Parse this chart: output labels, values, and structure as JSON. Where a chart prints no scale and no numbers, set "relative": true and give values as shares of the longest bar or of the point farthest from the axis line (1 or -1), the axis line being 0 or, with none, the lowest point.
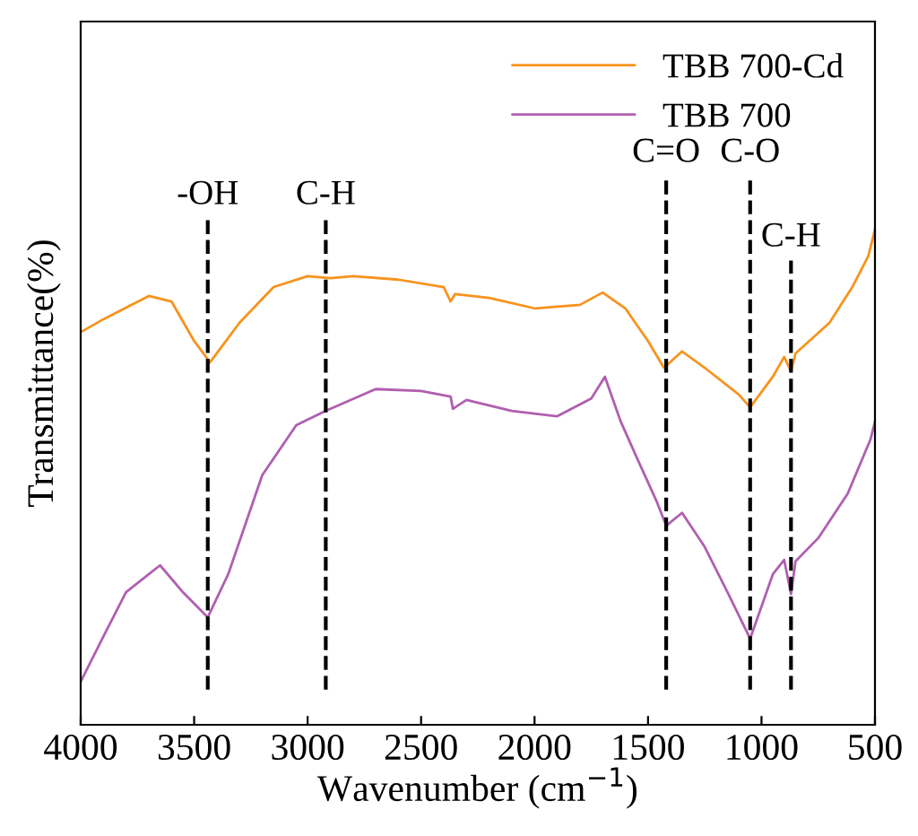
{
  "chart_data": {
    "type": "line",
    "xlabel": "Wavenumber (cm$^{−1}$)",
    "ylabel": "Transmittance(%)",
    "relative": true,
    "xlim": [
      4000,
      500
    ],
    "xticks": [
      4000,
      3500,
      3000,
      2500,
      2000,
      1500,
      1000,
      500
    ],
    "legend": "top right",
    "grid": false,
    "line_style": "solid",
    "marker": "none",
    "tick_labels": "x",
    "series": [
      {
        "name": "TBB 700-Cd",
        "color": "#f7931e",
        "x": [
          4000,
          3900,
          3700,
          3600,
          3500,
          3430,
          3300,
          3150,
          3000,
          2900,
          2800,
          2600,
          2400,
          2370,
          2350,
          2200,
          2000,
          1800,
          1700,
          1600,
          1500,
          1430,
          1350,
          1250,
          1100,
          1050,
          950,
          900,
          870,
          850,
          700,
          600,
          530,
          500
        ],
        "values": [
          0.793,
          0.819,
          0.866,
          0.855,
          0.775,
          0.732,
          0.812,
          0.884,
          0.906,
          0.902,
          0.906,
          0.899,
          0.884,
          0.855,
          0.87,
          0.862,
          0.841,
          0.848,
          0.873,
          0.841,
          0.775,
          0.721,
          0.754,
          0.721,
          0.667,
          0.641,
          0.703,
          0.743,
          0.714,
          0.75,
          0.812,
          0.884,
          0.946,
          1.0
        ]
      },
      {
        "name": "TBB 700",
        "color": "#b05fb0",
        "x": [
          4000,
          3900,
          3800,
          3700,
          3650,
          3550,
          3440,
          3350,
          3200,
          3050,
          2920,
          2700,
          2500,
          2370,
          2360,
          2300,
          2100,
          1900,
          1750,
          1690,
          1620,
          1550,
          1460,
          1420,
          1350,
          1250,
          1150,
          1050,
          950,
          900,
          870,
          850,
          750,
          620,
          520,
          500
        ],
        "values": [
          0.087,
          0.178,
          0.268,
          0.304,
          0.322,
          0.268,
          0.217,
          0.304,
          0.504,
          0.605,
          0.634,
          0.678,
          0.674,
          0.663,
          0.638,
          0.656,
          0.634,
          0.623,
          0.659,
          0.703,
          0.612,
          0.54,
          0.449,
          0.402,
          0.428,
          0.359,
          0.268,
          0.174,
          0.304,
          0.333,
          0.264,
          0.33,
          0.377,
          0.467,
          0.576,
          0.612
        ]
      }
    ],
    "ref_lines": [
      {
        "axis": "x",
        "value": 3440,
        "label": "-OH",
        "color": "#000000",
        "line_style": "dashed"
      },
      {
        "axis": "x",
        "value": 2920,
        "label": "C-H",
        "color": "#000000",
        "line_style": "dashed"
      },
      {
        "axis": "x",
        "value": 1420,
        "label": "C=O",
        "color": "#000000",
        "line_style": "dashed"
      },
      {
        "axis": "x",
        "value": 1050,
        "label": "C-O",
        "color": "#000000",
        "line_style": "dashed"
      },
      {
        "axis": "x",
        "value": 870,
        "label": "C-H",
        "color": "#000000",
        "line_style": "dashed"
      }
    ]
  }
}
